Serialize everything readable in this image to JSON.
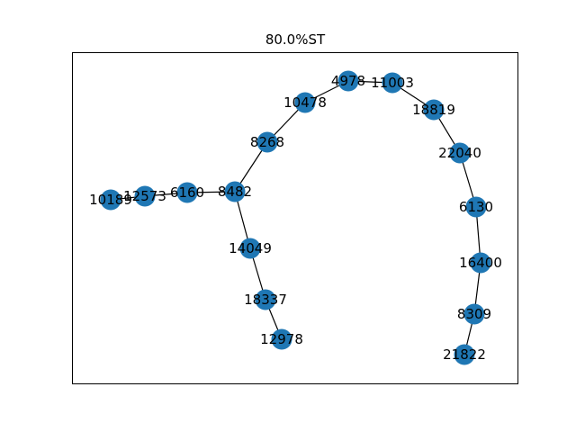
{
  "title": "80.0%ST",
  "node_color": "#1f77b4",
  "edge_color": "#000000",
  "nodes": [
    {
      "id": "4978"
    },
    {
      "id": "11003"
    },
    {
      "id": "10478"
    },
    {
      "id": "18819"
    },
    {
      "id": "8268"
    },
    {
      "id": "22040"
    },
    {
      "id": "10189"
    },
    {
      "id": "12573"
    },
    {
      "id": "6160"
    },
    {
      "id": "8482"
    },
    {
      "id": "6130"
    },
    {
      "id": "14049"
    },
    {
      "id": "16400"
    },
    {
      "id": "18337"
    },
    {
      "id": "8309"
    },
    {
      "id": "12978"
    },
    {
      "id": "21822"
    }
  ],
  "edges": [
    [
      "10189",
      "12573"
    ],
    [
      "12573",
      "6160"
    ],
    [
      "6160",
      "8482"
    ],
    [
      "8482",
      "8268"
    ],
    [
      "8268",
      "10478"
    ],
    [
      "10478",
      "4978"
    ],
    [
      "4978",
      "11003"
    ],
    [
      "11003",
      "18819"
    ],
    [
      "18819",
      "22040"
    ],
    [
      "22040",
      "6130"
    ],
    [
      "6130",
      "16400"
    ],
    [
      "16400",
      "8309"
    ],
    [
      "8309",
      "21822"
    ],
    [
      "8482",
      "14049"
    ],
    [
      "14049",
      "18337"
    ],
    [
      "18337",
      "12978"
    ]
  ]
}
